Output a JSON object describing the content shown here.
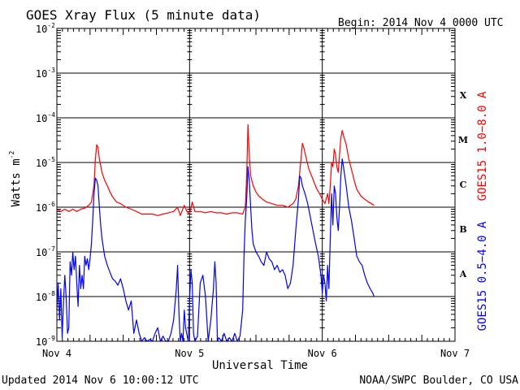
{
  "chart_data": {
    "type": "line",
    "title": "GOES Xray Flux (5 minute data)",
    "begin_label": "Begin:  2014 Nov 4 0000 UTC",
    "xlabel": "Universal Time",
    "ylabel_base": "Watts m",
    "ylabel_exp": "-2",
    "y_scale": "log",
    "ylim": [
      1e-09,
      0.01
    ],
    "y_tick_base": "10",
    "y_tick_exponents": [
      "-9",
      "-8",
      "-7",
      "-6",
      "-5",
      "-4",
      "-3",
      "-2"
    ],
    "xlim_days": [
      0,
      3
    ],
    "x_tick_labels": [
      "Nov 4",
      "Nov 5",
      "Nov 6",
      "Nov 7"
    ],
    "flare_classes": [
      {
        "label": "A",
        "flux": 3.2e-08
      },
      {
        "label": "B",
        "flux": 3.2e-07
      },
      {
        "label": "C",
        "flux": 3.2e-06
      },
      {
        "label": "M",
        "flux": 3.2e-05
      },
      {
        "label": "X",
        "flux": 0.00032
      }
    ],
    "grid": "horizontal lines at each decade",
    "legend": "right side, vertical labels",
    "series": [
      {
        "name": "GOES15 1.0−8.0 A",
        "color": "#ff0000",
        "points": [
          [
            0.0,
            9e-07
          ],
          [
            0.03,
            8e-07
          ],
          [
            0.06,
            9e-07
          ],
          [
            0.09,
            8e-07
          ],
          [
            0.12,
            9e-07
          ],
          [
            0.15,
            8e-07
          ],
          [
            0.18,
            9e-07
          ],
          [
            0.21,
            9.5e-07
          ],
          [
            0.24,
            1.1e-06
          ],
          [
            0.26,
            1.3e-06
          ],
          [
            0.28,
            3e-06
          ],
          [
            0.29,
            1.2e-05
          ],
          [
            0.3,
            2.5e-05
          ],
          [
            0.31,
            2.2e-05
          ],
          [
            0.32,
            1.2e-05
          ],
          [
            0.34,
            6e-06
          ],
          [
            0.36,
            4e-06
          ],
          [
            0.38,
            3e-06
          ],
          [
            0.4,
            2.2e-06
          ],
          [
            0.42,
            1.7e-06
          ],
          [
            0.45,
            1.3e-06
          ],
          [
            0.48,
            1.2e-06
          ],
          [
            0.52,
            1e-06
          ],
          [
            0.56,
            9e-07
          ],
          [
            0.6,
            8e-07
          ],
          [
            0.64,
            7e-07
          ],
          [
            0.68,
            7e-07
          ],
          [
            0.72,
            7e-07
          ],
          [
            0.76,
            6.5e-07
          ],
          [
            0.8,
            7e-07
          ],
          [
            0.84,
            7.5e-07
          ],
          [
            0.88,
            8e-07
          ],
          [
            0.91,
            1e-06
          ],
          [
            0.93,
            6.5e-07
          ],
          [
            0.96,
            1.1e-06
          ],
          [
            0.98,
            8e-07
          ],
          [
            1.0,
            7e-07
          ],
          [
            1.02,
            1.3e-06
          ],
          [
            1.04,
            8e-07
          ],
          [
            1.08,
            8e-07
          ],
          [
            1.12,
            7.5e-07
          ],
          [
            1.16,
            8e-07
          ],
          [
            1.2,
            7.5e-07
          ],
          [
            1.24,
            7.5e-07
          ],
          [
            1.28,
            7e-07
          ],
          [
            1.32,
            7.5e-07
          ],
          [
            1.36,
            7.5e-07
          ],
          [
            1.4,
            7e-07
          ],
          [
            1.42,
            1e-06
          ],
          [
            1.43,
            5e-06
          ],
          [
            1.44,
            7e-05
          ],
          [
            1.45,
            1.5e-05
          ],
          [
            1.46,
            5e-06
          ],
          [
            1.48,
            3e-06
          ],
          [
            1.5,
            2.2e-06
          ],
          [
            1.52,
            1.8e-06
          ],
          [
            1.55,
            1.5e-06
          ],
          [
            1.58,
            1.3e-06
          ],
          [
            1.62,
            1.2e-06
          ],
          [
            1.66,
            1.1e-06
          ],
          [
            1.7,
            1.1e-06
          ],
          [
            1.74,
            1e-06
          ],
          [
            1.78,
            1.2e-06
          ],
          [
            1.8,
            1.5e-06
          ],
          [
            1.82,
            3e-06
          ],
          [
            1.84,
            1.2e-05
          ],
          [
            1.85,
            2.7e-05
          ],
          [
            1.86,
            2.2e-05
          ],
          [
            1.88,
            1.2e-05
          ],
          [
            1.9,
            7e-06
          ],
          [
            1.92,
            5e-06
          ],
          [
            1.94,
            3.5e-06
          ],
          [
            1.96,
            2.5e-06
          ],
          [
            1.98,
            2e-06
          ],
          [
            2.0,
            1.5e-06
          ],
          [
            2.02,
            1.2e-06
          ],
          [
            2.04,
            2e-06
          ],
          [
            2.05,
            1.2e-06
          ],
          [
            2.06,
            3e-06
          ],
          [
            2.07,
            1e-05
          ],
          [
            2.08,
            8e-06
          ],
          [
            2.09,
            2e-05
          ],
          [
            2.1,
            1.5e-05
          ],
          [
            2.11,
            8e-06
          ],
          [
            2.12,
            6e-06
          ],
          [
            2.13,
            1.5e-05
          ],
          [
            2.14,
            3.5e-05
          ],
          [
            2.15,
            5.2e-05
          ],
          [
            2.16,
            4e-05
          ],
          [
            2.18,
            2.5e-05
          ],
          [
            2.2,
            1.2e-05
          ],
          [
            2.22,
            7e-06
          ],
          [
            2.24,
            4e-06
          ],
          [
            2.26,
            2.5e-06
          ],
          [
            2.29,
            1.8e-06
          ],
          [
            2.32,
            1.5e-06
          ],
          [
            2.35,
            1.3e-06
          ],
          [
            2.39,
            1.1e-06
          ]
        ]
      },
      {
        "name": "GOES15 0.5−4.0 A",
        "color": "#0000ff",
        "points": [
          [
            0.0,
            5e-09
          ],
          [
            0.01,
            2e-08
          ],
          [
            0.02,
            3e-09
          ],
          [
            0.03,
            1.5e-08
          ],
          [
            0.04,
            1.2e-09
          ],
          [
            0.05,
            8e-09
          ],
          [
            0.06,
            3e-08
          ],
          [
            0.07,
            1e-08
          ],
          [
            0.08,
            1.5e-09
          ],
          [
            0.09,
            2e-09
          ],
          [
            0.1,
            6e-08
          ],
          [
            0.11,
            3e-08
          ],
          [
            0.12,
            1e-07
          ],
          [
            0.13,
            4e-08
          ],
          [
            0.14,
            8e-08
          ],
          [
            0.15,
            2e-08
          ],
          [
            0.16,
            6e-09
          ],
          [
            0.17,
            5e-08
          ],
          [
            0.18,
            1.5e-08
          ],
          [
            0.19,
            3e-08
          ],
          [
            0.2,
            1.5e-08
          ],
          [
            0.21,
            8e-08
          ],
          [
            0.22,
            5e-08
          ],
          [
            0.23,
            7e-08
          ],
          [
            0.24,
            4e-08
          ],
          [
            0.25,
            7e-08
          ],
          [
            0.26,
            1.5e-07
          ],
          [
            0.27,
            5e-07
          ],
          [
            0.28,
            2e-06
          ],
          [
            0.29,
            4.5e-06
          ],
          [
            0.3,
            4e-06
          ],
          [
            0.31,
            3e-06
          ],
          [
            0.32,
            1e-06
          ],
          [
            0.33,
            4e-07
          ],
          [
            0.34,
            2e-07
          ],
          [
            0.36,
            8e-08
          ],
          [
            0.38,
            5e-08
          ],
          [
            0.4,
            3.5e-08
          ],
          [
            0.42,
            2.5e-08
          ],
          [
            0.44,
            2.2e-08
          ],
          [
            0.46,
            1.8e-08
          ],
          [
            0.48,
            2.5e-08
          ],
          [
            0.5,
            1.5e-08
          ],
          [
            0.52,
            8e-09
          ],
          [
            0.54,
            5e-09
          ],
          [
            0.56,
            8e-09
          ],
          [
            0.58,
            1.5e-09
          ],
          [
            0.6,
            3e-09
          ],
          [
            0.62,
            1.5e-09
          ],
          [
            0.64,
            1e-09
          ],
          [
            0.66,
            1.2e-09
          ],
          [
            0.68,
            1e-09
          ],
          [
            0.7,
            1.1e-09
          ],
          [
            0.72,
            1e-09
          ],
          [
            0.74,
            1.5e-09
          ],
          [
            0.76,
            2e-09
          ],
          [
            0.78,
            1e-09
          ],
          [
            0.8,
            1.3e-09
          ],
          [
            0.82,
            1e-09
          ],
          [
            0.84,
            1e-09
          ],
          [
            0.86,
            1.5e-09
          ],
          [
            0.88,
            3e-09
          ],
          [
            0.9,
            1.5e-08
          ],
          [
            0.91,
            5e-08
          ],
          [
            0.92,
            4e-09
          ],
          [
            0.93,
            1e-09
          ],
          [
            0.94,
            1.5e-09
          ],
          [
            0.95,
            1e-09
          ],
          [
            0.96,
            5e-09
          ],
          [
            0.97,
            2e-09
          ],
          [
            0.99,
            1e-09
          ],
          [
            1.0,
            8e-09
          ],
          [
            1.01,
            4e-08
          ],
          [
            1.02,
            2e-08
          ],
          [
            1.03,
            1.5e-09
          ],
          [
            1.04,
            1e-09
          ],
          [
            1.06,
            1.3e-09
          ],
          [
            1.08,
            2e-08
          ],
          [
            1.1,
            3e-08
          ],
          [
            1.12,
            1e-08
          ],
          [
            1.14,
            1e-09
          ],
          [
            1.16,
            3e-09
          ],
          [
            1.18,
            1.5e-08
          ],
          [
            1.19,
            6e-08
          ],
          [
            1.2,
            2e-08
          ],
          [
            1.21,
            1e-09
          ],
          [
            1.22,
            1.2e-09
          ],
          [
            1.24,
            1e-09
          ],
          [
            1.26,
            1.5e-09
          ],
          [
            1.28,
            1e-09
          ],
          [
            1.3,
            1.2e-09
          ],
          [
            1.32,
            1e-09
          ],
          [
            1.34,
            1.5e-09
          ],
          [
            1.36,
            1e-09
          ],
          [
            1.38,
            1.3e-09
          ],
          [
            1.4,
            5e-09
          ],
          [
            1.41,
            8e-08
          ],
          [
            1.42,
            5e-07
          ],
          [
            1.43,
            1.5e-06
          ],
          [
            1.44,
            8e-06
          ],
          [
            1.45,
            4e-06
          ],
          [
            1.46,
            1e-06
          ],
          [
            1.47,
            3e-07
          ],
          [
            1.48,
            1.5e-07
          ],
          [
            1.5,
            1e-07
          ],
          [
            1.52,
            8e-08
          ],
          [
            1.54,
            6e-08
          ],
          [
            1.56,
            5e-08
          ],
          [
            1.58,
            1e-07
          ],
          [
            1.6,
            7e-08
          ],
          [
            1.62,
            6e-08
          ],
          [
            1.64,
            4e-08
          ],
          [
            1.66,
            5e-08
          ],
          [
            1.68,
            3.5e-08
          ],
          [
            1.7,
            4e-08
          ],
          [
            1.72,
            3e-08
          ],
          [
            1.74,
            1.5e-08
          ],
          [
            1.76,
            2e-08
          ],
          [
            1.78,
            5e-08
          ],
          [
            1.8,
            3e-07
          ],
          [
            1.82,
            1.5e-06
          ],
          [
            1.83,
            5e-06
          ],
          [
            1.84,
            4.5e-06
          ],
          [
            1.85,
            3e-06
          ],
          [
            1.87,
            2e-06
          ],
          [
            1.89,
            1.2e-06
          ],
          [
            1.91,
            6e-07
          ],
          [
            1.93,
            3e-07
          ],
          [
            1.95,
            1.5e-07
          ],
          [
            1.97,
            8e-08
          ],
          [
            1.99,
            3e-08
          ],
          [
            2.0,
            1.2e-08
          ],
          [
            2.01,
            3e-08
          ],
          [
            2.02,
            2e-08
          ],
          [
            2.03,
            8e-09
          ],
          [
            2.04,
            5e-08
          ],
          [
            2.05,
            1.5e-08
          ],
          [
            2.06,
            2e-07
          ],
          [
            2.07,
            2e-06
          ],
          [
            2.08,
            4e-07
          ],
          [
            2.09,
            3e-06
          ],
          [
            2.1,
            2e-06
          ],
          [
            2.11,
            6e-07
          ],
          [
            2.12,
            3e-07
          ],
          [
            2.13,
            1e-06
          ],
          [
            2.14,
            5e-06
          ],
          [
            2.15,
            1.2e-05
          ],
          [
            2.16,
            8e-06
          ],
          [
            2.18,
            3e-06
          ],
          [
            2.2,
            1e-06
          ],
          [
            2.22,
            5e-07
          ],
          [
            2.24,
            2e-07
          ],
          [
            2.26,
            8e-08
          ],
          [
            2.28,
            6e-08
          ],
          [
            2.3,
            5e-08
          ],
          [
            2.32,
            3e-08
          ],
          [
            2.34,
            2e-08
          ],
          [
            2.36,
            1.5e-08
          ],
          [
            2.38,
            1.2e-08
          ],
          [
            2.39,
            1e-08
          ]
        ]
      }
    ]
  },
  "footer": {
    "updated": "Updated 2014 Nov  6 10:00:12 UTC",
    "credit": "NOAA/SWPC Boulder, CO USA"
  }
}
